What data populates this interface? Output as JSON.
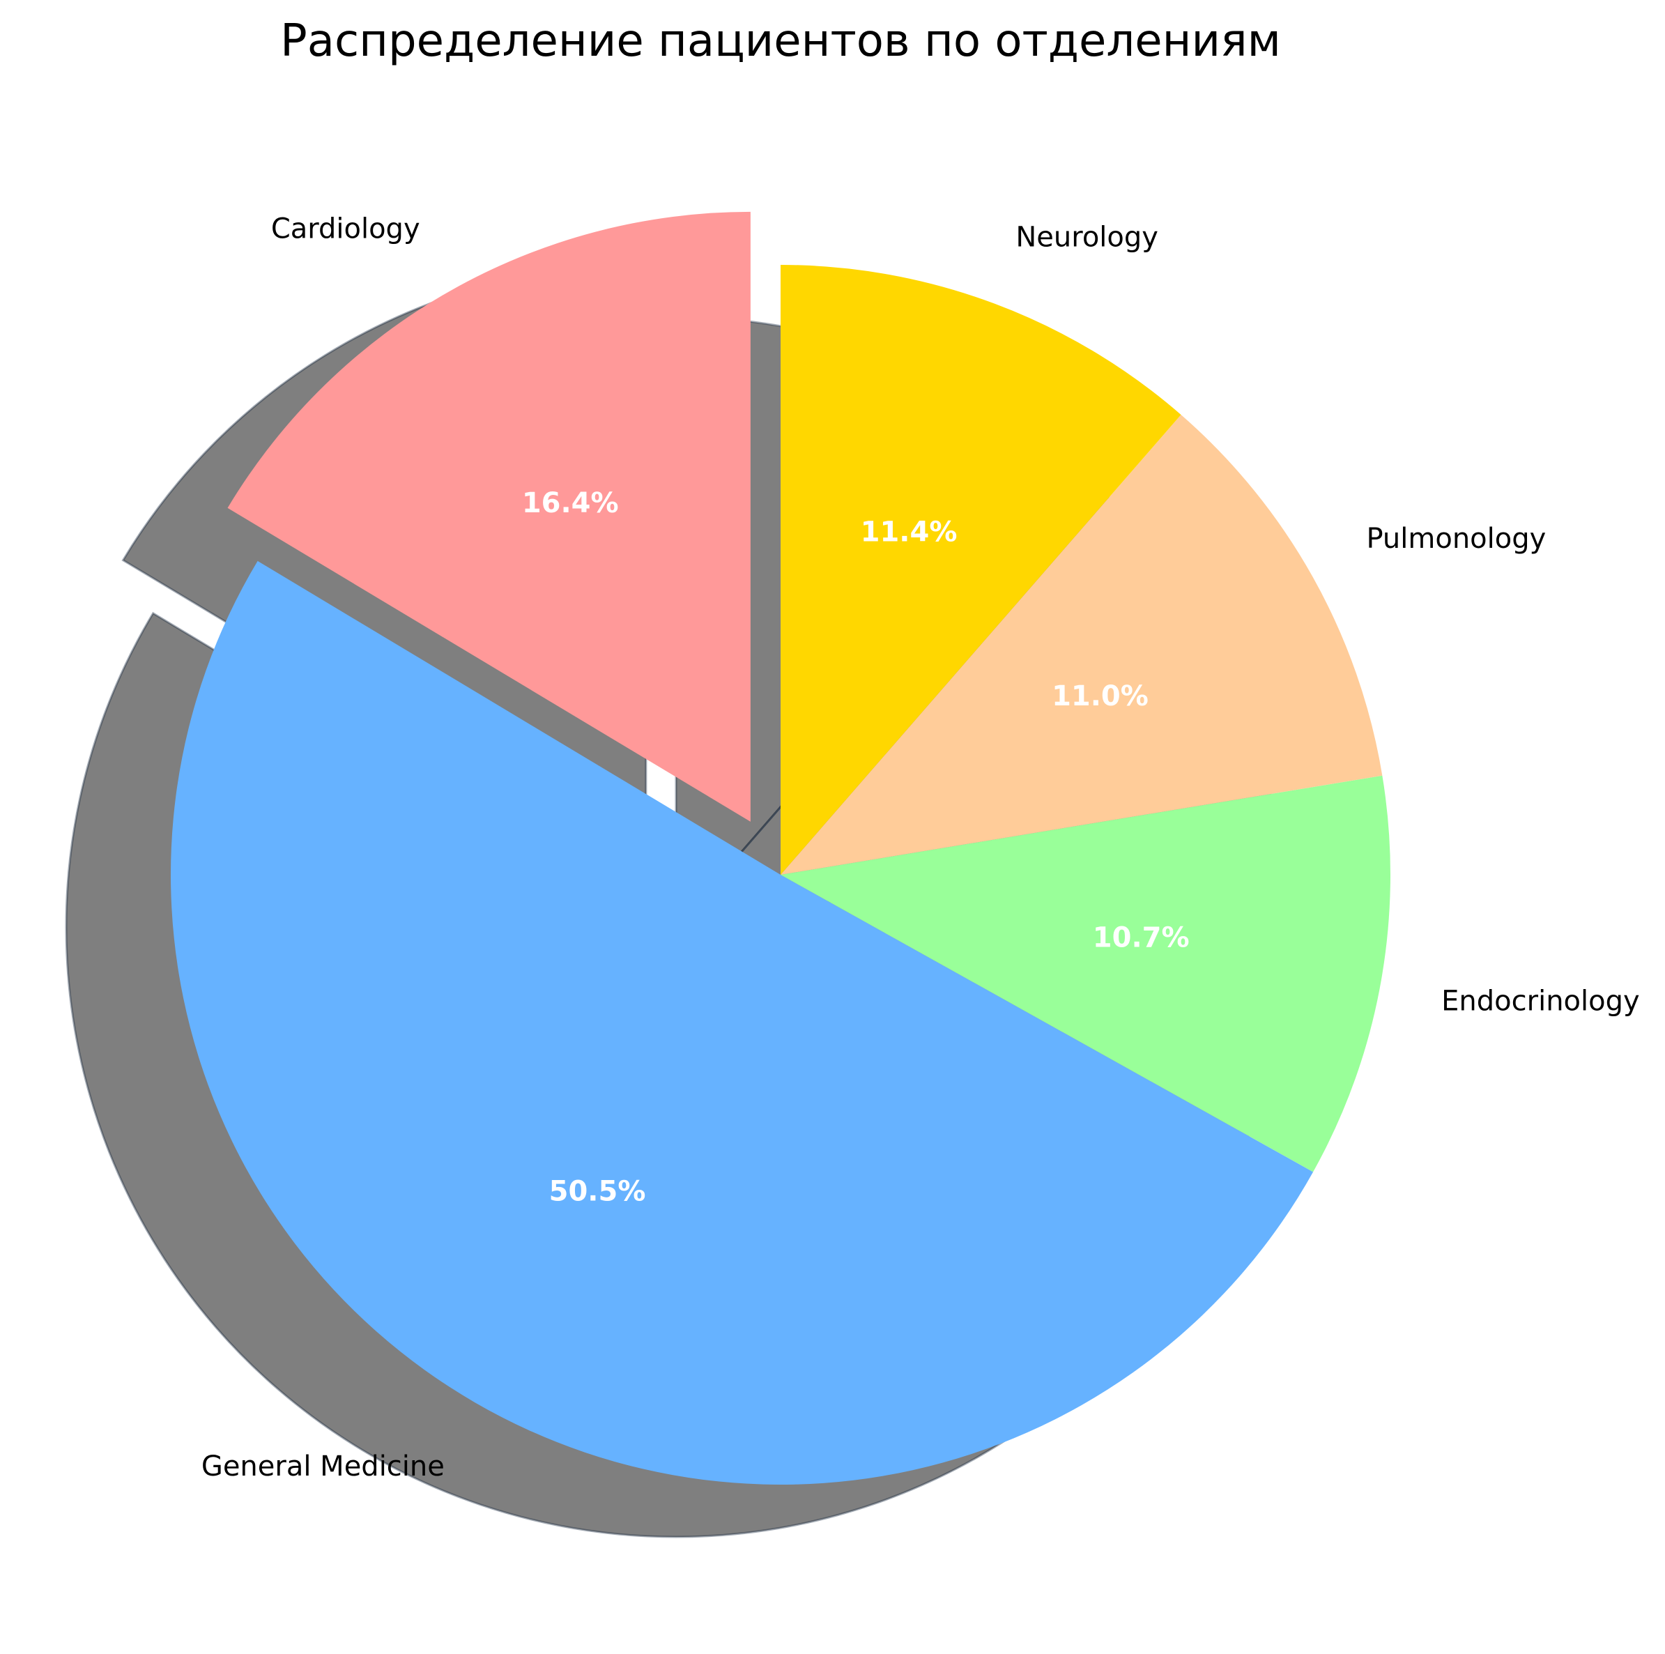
{
  "chart_data": {
    "type": "pie",
    "title": "Распределение пациентов по отделениям",
    "start_angle_deg": 90,
    "direction": "counterclockwise",
    "shadow": true,
    "slices": [
      {
        "label": "Cardiology",
        "value": 16.4,
        "pct_label": "16.4%",
        "color": "#FF9999",
        "exploded": true
      },
      {
        "label": "General Medicine",
        "value": 50.5,
        "pct_label": "50.5%",
        "color": "#66B2FF",
        "exploded": false
      },
      {
        "label": "Endocrinology",
        "value": 10.7,
        "pct_label": "10.7%",
        "color": "#99FF99",
        "exploded": false
      },
      {
        "label": "Pulmonology",
        "value": 11.0,
        "pct_label": "11.0%",
        "color": "#FFCC99",
        "exploded": false
      },
      {
        "label": "Neurology",
        "value": 11.4,
        "pct_label": "11.4%",
        "color": "#FFD700",
        "exploded": false
      }
    ]
  }
}
